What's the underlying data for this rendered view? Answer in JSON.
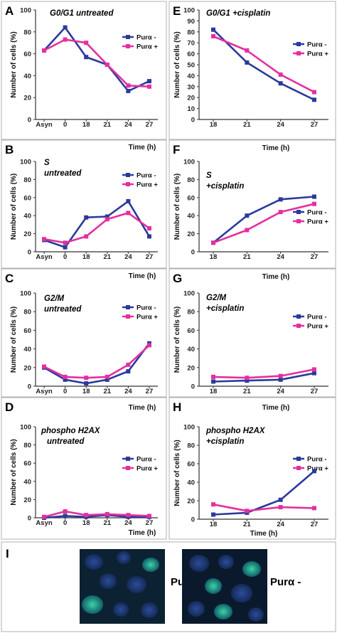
{
  "colors": {
    "minus": "#2a3a9c",
    "plus": "#e42f9f",
    "axis": "#333333",
    "border": "#b0b0b0"
  },
  "chart_data": [
    {
      "panel": "A",
      "type": "line",
      "label": "G0/G1    untreated",
      "label2": "",
      "categories": [
        "Asyn",
        "0",
        "18",
        "21",
        "24",
        "27"
      ],
      "ylabel": "Number of cells (%)",
      "xlabel": "Time (h)",
      "ylim": [
        0,
        100
      ],
      "yticks": [
        0,
        20,
        40,
        60,
        80,
        100
      ],
      "series": [
        {
          "name": "Purα -",
          "values": [
            63,
            84,
            57,
            50,
            26,
            35
          ]
        },
        {
          "name": "Purα +",
          "values": [
            63,
            73,
            70,
            50,
            31,
            30
          ]
        }
      ]
    },
    {
      "panel": "E",
      "type": "line",
      "label": "G0/G1    +cisplatin",
      "label2": "",
      "categories": [
        "18",
        "21",
        "24",
        "27"
      ],
      "ylabel": "Number of cells (%)",
      "xlabel": "",
      "ylim": [
        0,
        100
      ],
      "yticks": [
        0,
        10,
        20,
        30,
        40,
        50,
        60,
        70,
        80,
        90,
        100
      ],
      "series": [
        {
          "name": "Purα -",
          "values": [
            82,
            52,
            33,
            18
          ]
        },
        {
          "name": "Purα +",
          "values": [
            76,
            63,
            41,
            25
          ]
        }
      ]
    },
    {
      "panel": "B",
      "type": "line",
      "label": "S",
      "label2": "untreated",
      "categories": [
        "Asyn",
        "0",
        "18",
        "21",
        "24",
        "27"
      ],
      "ylabel": "Number of cells (%)",
      "xlabel": "Time (h)",
      "ylim": [
        0,
        100
      ],
      "yticks": [
        0,
        20,
        40,
        60,
        80,
        100
      ],
      "series": [
        {
          "name": "Purα -",
          "values": [
            13,
            5,
            38,
            39,
            56,
            17
          ]
        },
        {
          "name": "Purα +",
          "values": [
            14,
            10,
            17,
            36,
            43,
            26
          ]
        }
      ]
    },
    {
      "panel": "F",
      "type": "line",
      "label": "S",
      "label2": "+cisplatin",
      "categories": [
        "18",
        "21",
        "24",
        "27"
      ],
      "ylabel": "Number of cells (%)",
      "xlabel": "Time (h)",
      "ylim": [
        0,
        100
      ],
      "yticks": [
        0,
        20,
        40,
        60,
        80,
        100
      ],
      "series": [
        {
          "name": "Purα -",
          "values": [
            10,
            40,
            58,
            61
          ]
        },
        {
          "name": "Purα +",
          "values": [
            10,
            24,
            44,
            53
          ]
        }
      ]
    },
    {
      "panel": "C",
      "type": "line",
      "label": "G2/M",
      "label2": "untreated",
      "categories": [
        "Asyn",
        "0",
        "18",
        "21",
        "24",
        "27"
      ],
      "ylabel": "Number of cells (%)",
      "xlabel": "Time (h)",
      "ylim": [
        0,
        100
      ],
      "yticks": [
        0,
        20,
        40,
        60,
        80,
        100
      ],
      "series": [
        {
          "name": "Purα -",
          "values": [
            20,
            7,
            3,
            7,
            16,
            46
          ]
        },
        {
          "name": "Purα +",
          "values": [
            21,
            10,
            9,
            10,
            23,
            44
          ]
        }
      ]
    },
    {
      "panel": "G",
      "type": "line",
      "label": "G2/M",
      "label2": "+cisplatin",
      "categories": [
        "18",
        "21",
        "24",
        "27"
      ],
      "ylabel": "Number of cells (%)",
      "xlabel": "Time (h)",
      "ylim": [
        0,
        100
      ],
      "yticks": [
        0,
        20,
        40,
        60,
        80,
        100
      ],
      "series": [
        {
          "name": "Purα -",
          "values": [
            5,
            6,
            7,
            14
          ]
        },
        {
          "name": "Purα +",
          "values": [
            10,
            9,
            11,
            18
          ]
        }
      ]
    },
    {
      "panel": "D",
      "type": "line",
      "label": "phospho H2AX",
      "label2": "untreated",
      "categories": [
        "Asyn",
        "0",
        "18",
        "21",
        "24",
        "27"
      ],
      "ylabel": "Number of cells (%)",
      "xlabel": "Time (h)",
      "ylim": [
        0,
        100
      ],
      "yticks": [
        0,
        20,
        40,
        60,
        80,
        100
      ],
      "series": [
        {
          "name": "Purα -",
          "values": [
            0,
            2,
            1,
            3,
            1,
            1
          ]
        },
        {
          "name": "Purα +",
          "values": [
            1,
            7,
            3,
            4,
            3,
            2
          ]
        }
      ]
    },
    {
      "panel": "H",
      "type": "line",
      "label": "phospho H2AX",
      "label2": "+cisplatin",
      "categories": [
        "18",
        "21",
        "24",
        "27"
      ],
      "ylabel": "Number of cells (%)",
      "xlabel": "Time (h)",
      "ylim": [
        0,
        100
      ],
      "yticks": [
        0,
        20,
        40,
        60,
        80,
        100
      ],
      "series": [
        {
          "name": "Purα -",
          "values": [
            5,
            7,
            21,
            52
          ]
        },
        {
          "name": "Purα +",
          "values": [
            16,
            9,
            13,
            12
          ]
        }
      ]
    }
  ],
  "micrographs": {
    "panel": "I",
    "left_label": "Purα +",
    "right_label": "Purα -"
  }
}
